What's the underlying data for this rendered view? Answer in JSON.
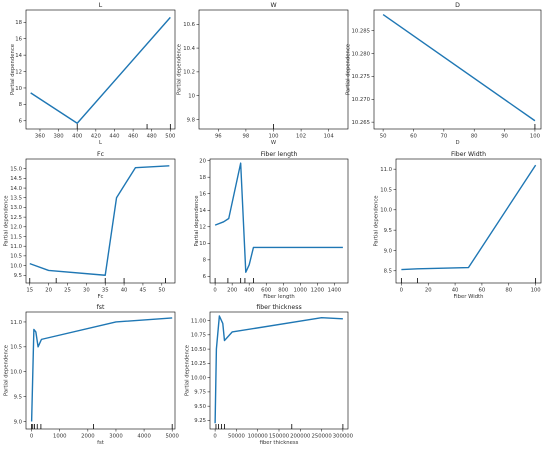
{
  "chart_data": [
    {
      "type": "line",
      "title": "L",
      "xlabel": "L",
      "ylabel": "Partial dependence",
      "xlim": [
        345,
        505
      ],
      "ylim": [
        5.0,
        19.5
      ],
      "xticks": [
        360,
        380,
        400,
        420,
        440,
        460,
        480,
        500
      ],
      "yticks": [
        6,
        8,
        10,
        12,
        14,
        16,
        18
      ],
      "x": [
        350,
        400,
        500
      ],
      "y": [
        9.4,
        5.7,
        18.6
      ],
      "rug": [
        400,
        475,
        500
      ]
    },
    {
      "type": "line",
      "title": "W",
      "xlabel": "W",
      "ylabel": "Partial dependence",
      "xlim": [
        94.6,
        105.4
      ],
      "ylim": [
        9.72,
        10.72
      ],
      "xticks": [
        96,
        98,
        100,
        102,
        104
      ],
      "yticks": [
        9.8,
        10.0,
        10.2,
        10.4,
        10.6
      ],
      "x": [],
      "y": [],
      "rug": [
        100
      ]
    },
    {
      "type": "line",
      "title": "D",
      "xlabel": "D",
      "ylabel": "Partial dependence",
      "xlim": [
        47,
        102
      ],
      "ylim": [
        10.2635,
        10.2895
      ],
      "xticks": [
        50,
        60,
        70,
        80,
        90,
        100
      ],
      "yticks": [
        10.265,
        10.27,
        10.275,
        10.28,
        10.285
      ],
      "ytick_format": 3,
      "x": [
        50,
        100
      ],
      "y": [
        10.2885,
        10.2653
      ],
      "rug": [
        100
      ]
    },
    {
      "type": "line",
      "title": "Fc",
      "xlabel": "Fc",
      "ylabel": "Partial dependence",
      "xlim": [
        14.0,
        53.5
      ],
      "ylim": [
        9.1,
        15.5
      ],
      "xticks": [
        15,
        20,
        25,
        30,
        35,
        40,
        45,
        50
      ],
      "yticks": [
        9.5,
        10.0,
        10.5,
        11.0,
        11.5,
        12.0,
        12.5,
        13.0,
        13.5,
        14.0,
        14.5,
        15.0
      ],
      "ytick_format": 1,
      "x": [
        15,
        20,
        35,
        38,
        43,
        52
      ],
      "y": [
        10.1,
        9.75,
        9.5,
        13.5,
        15.05,
        15.15
      ],
      "rug": [
        15,
        22,
        35,
        40,
        51
      ]
    },
    {
      "type": "line",
      "title": "Fiber length",
      "xlabel": "Fiber length",
      "ylabel": "Partial dependence",
      "xlim": [
        -60,
        1560
      ],
      "ylim": [
        5.2,
        20.2
      ],
      "xticks": [
        0,
        200,
        400,
        600,
        800,
        1000,
        1200,
        1400
      ],
      "yticks": [
        6,
        8,
        10,
        12,
        14,
        16,
        18,
        20
      ],
      "x": [
        0,
        100,
        160,
        300,
        360,
        400,
        450,
        1500
      ],
      "y": [
        12.2,
        12.6,
        13.0,
        19.7,
        6.5,
        7.4,
        9.5,
        9.5
      ],
      "rug": [
        0,
        150,
        300,
        350,
        450
      ]
    },
    {
      "type": "line",
      "title": "Fiber Width",
      "xlabel": "Fiber Width",
      "ylabel": "Partial dependence",
      "xlim": [
        -4,
        104
      ],
      "ylim": [
        8.2,
        11.25
      ],
      "xticks": [
        0,
        20,
        40,
        60,
        80,
        100
      ],
      "yticks": [
        8.5,
        9.0,
        9.5,
        10.0,
        10.5,
        11.0
      ],
      "ytick_format": 1,
      "x": [
        0,
        12,
        50,
        100
      ],
      "y": [
        8.53,
        8.55,
        8.58,
        11.1
      ],
      "rug": [
        0,
        12,
        100
      ]
    },
    {
      "type": "line",
      "title": "fst",
      "xlabel": "fst",
      "ylabel": "Partial dependence",
      "xlim": [
        -200,
        5100
      ],
      "ylim": [
        8.85,
        11.2
      ],
      "xticks": [
        0,
        1000,
        2000,
        3000,
        4000,
        5000
      ],
      "yticks": [
        9.0,
        9.5,
        10.0,
        10.5,
        11.0
      ],
      "ytick_format": 1,
      "x": [
        0,
        80,
        150,
        230,
        350,
        3000,
        5000
      ],
      "y": [
        9.0,
        10.85,
        10.8,
        10.5,
        10.65,
        11.0,
        11.08
      ],
      "rug": [
        0,
        40,
        100,
        200,
        330,
        2200,
        5000
      ]
    },
    {
      "type": "line",
      "title": "fiber thickness",
      "xlabel": "fiber thickness",
      "ylabel": "Partial dependence",
      "xlim": [
        -12000,
        312000
      ],
      "ylim": [
        9.1,
        11.15
      ],
      "xticks": [
        0,
        50000,
        100000,
        150000,
        200000,
        250000,
        300000
      ],
      "yticks": [
        9.25,
        9.5,
        9.75,
        10.0,
        10.25,
        10.5,
        10.75,
        11.0
      ],
      "ytick_format": 2,
      "x": [
        0,
        3000,
        10000,
        18000,
        22000,
        40000,
        250000,
        300000
      ],
      "y": [
        9.2,
        10.5,
        11.08,
        10.95,
        10.65,
        10.8,
        11.05,
        11.03
      ],
      "rug": [
        2000,
        8000,
        15000,
        22000,
        180000,
        300000
      ]
    }
  ]
}
